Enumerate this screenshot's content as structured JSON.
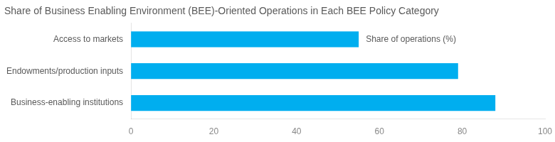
{
  "chart_data": {
    "type": "bar",
    "orientation": "horizontal",
    "title": "Share of Business Enabling Environment (BEE)-Oriented Operations in Each BEE Policy Category",
    "categories": [
      "Business-enabling institutions",
      "Endowments/production inputs",
      "Access to markets"
    ],
    "values": [
      88,
      79,
      55
    ],
    "color": "#00AEEF",
    "annotation": "Share of operations (%)",
    "xlim": [
      0,
      100
    ],
    "xticks": [
      0,
      20,
      40,
      60,
      80,
      100
    ],
    "grid": false
  }
}
